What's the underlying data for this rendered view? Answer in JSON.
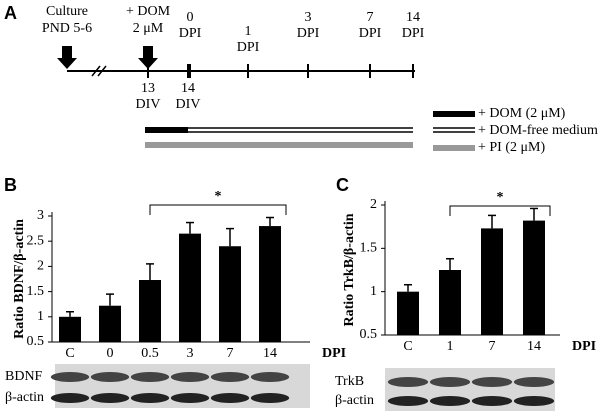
{
  "timeline": {
    "label": "A",
    "culture": [
      "Culture",
      "PND 5-6"
    ],
    "dom": [
      "+ DOM",
      "2 μM"
    ],
    "dpi_points": [
      [
        "0",
        "DPI"
      ],
      [
        "1",
        "DPI"
      ],
      [
        "3",
        "DPI"
      ],
      [
        "7",
        "DPI"
      ],
      [
        "14",
        "DPI"
      ]
    ],
    "div_points": [
      [
        "13",
        "DIV"
      ],
      [
        "14",
        "DIV"
      ]
    ],
    "legend": [
      "+ DOM (2 μM)",
      "+ DOM-free medium",
      "+ PI (2 μM)"
    ]
  },
  "chart_data": [
    {
      "type": "bar",
      "label": "B",
      "ylabel": "Ratio BDNF/β-actin",
      "xlabel": "DPI",
      "annotation": "*",
      "categories": [
        "C",
        "0",
        "0.5",
        "3",
        "7",
        "14"
      ],
      "values": [
        1.0,
        1.22,
        1.73,
        2.65,
        2.4,
        2.8
      ],
      "errors": [
        0.1,
        0.23,
        0.32,
        0.22,
        0.35,
        0.17
      ],
      "color": "#000000",
      "ylim": [
        0.5,
        3
      ],
      "yticks": [
        0.5,
        1,
        1.5,
        2,
        2.5,
        3
      ],
      "blot_labels": [
        "BDNF",
        "β-actin"
      ]
    },
    {
      "type": "bar",
      "label": "C",
      "ylabel": "Ratio TrkB/β-actin",
      "xlabel": "DPI",
      "annotation": "*",
      "categories": [
        "C",
        "1",
        "7",
        "14"
      ],
      "values": [
        1.0,
        1.25,
        1.73,
        1.82
      ],
      "errors": [
        0.08,
        0.13,
        0.15,
        0.14
      ],
      "color": "#000000",
      "ylim": [
        0.5,
        2
      ],
      "yticks": [
        0.5,
        1,
        1.5,
        2
      ],
      "blot_labels": [
        "TrkB",
        "β-actin"
      ]
    }
  ]
}
